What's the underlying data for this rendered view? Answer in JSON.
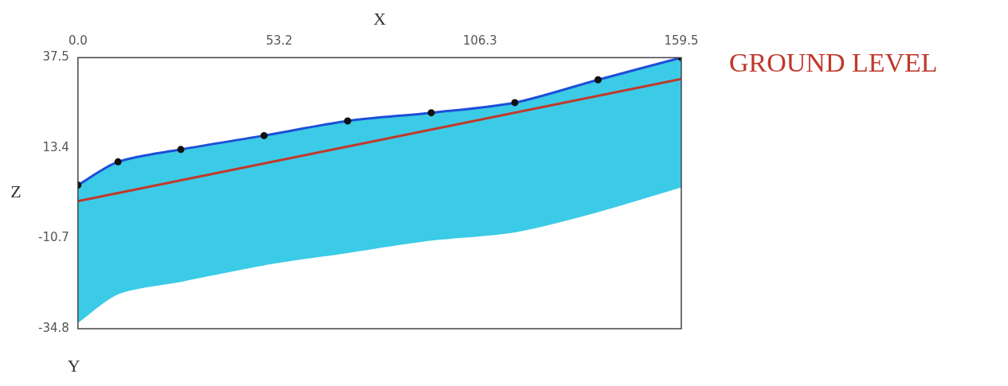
{
  "chart_data": {
    "type": "area",
    "x_label": "X",
    "y_label": "Z",
    "z_label": "Y",
    "x": [
      0,
      10.6,
      27.2,
      49.2,
      71.3,
      93.4,
      115.5,
      137.5,
      159.5
    ],
    "series": [
      {
        "color": "#1d4fd8",
        "marker": "circle",
        "values": [
          3.5,
          9.7,
          13.0,
          16.7,
          20.6,
          22.8,
          25.5,
          31.6,
          37.5
        ]
      },
      {
        "color": "#3ccbe6",
        "values": [
          -33.0,
          -25.4,
          -22.1,
          -17.7,
          -14.4,
          -11.1,
          -8.9,
          -3.5,
          3.1
        ]
      }
    ],
    "xlim": [
      0,
      159.5
    ],
    "xticks": [
      {
        "value": 0,
        "label": "0.0"
      },
      53.2,
      106.3,
      159.5
    ],
    "ylim": [
      -34.8,
      37.5
    ],
    "yticks": [
      -34.8,
      -10.7,
      13.4,
      37.5
    ],
    "grid": false,
    "annotations": [
      {
        "text": "GROUND LEVEL",
        "x": [
          0,
          159.5
        ],
        "y": [
          -0.8,
          31.8
        ],
        "color": "#c0392b"
      }
    ]
  }
}
